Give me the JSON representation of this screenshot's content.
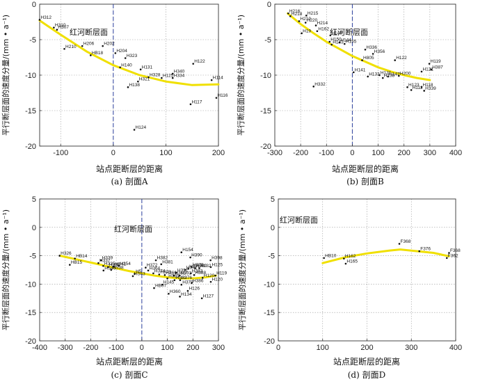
{
  "chart_data": [
    {
      "type": "scatter",
      "panel": "A",
      "caption": "(a) 剖面A",
      "xlabel": "站点距断层的距离",
      "ylabel": "平行断层面的速度分量/(mm • a⁻¹)",
      "xlim": [
        -140,
        200
      ],
      "ylim": [
        -20,
        0
      ],
      "xticks": [
        -100,
        0,
        100,
        200
      ],
      "yticks": [
        0,
        -5,
        -10,
        -15,
        -20
      ],
      "fault_x": 0,
      "fault_label": "红河断层面",
      "fit_curve": [
        [
          -140,
          -2.3
        ],
        [
          -100,
          -4.3
        ],
        [
          -50,
          -6.7
        ],
        [
          0,
          -8.6
        ],
        [
          50,
          -10.0
        ],
        [
          100,
          -10.9
        ],
        [
          150,
          -11.4
        ],
        [
          200,
          -11.3
        ]
      ],
      "points": [
        {
          "label": "H312",
          "x": -140,
          "y": -2.2
        },
        {
          "label": "H310",
          "x": -113,
          "y": -3.3
        },
        {
          "label": "H307",
          "x": -107,
          "y": -3.6
        },
        {
          "label": "H210",
          "x": -93,
          "y": -6.3
        },
        {
          "label": "H206",
          "x": -59,
          "y": -5.9
        },
        {
          "label": "HB18",
          "x": -43,
          "y": -7.2
        },
        {
          "label": "H202",
          "x": -20,
          "y": -5.9
        },
        {
          "label": "H204",
          "x": 4,
          "y": -6.9
        },
        {
          "label": "H323",
          "x": 23,
          "y": -7.6
        },
        {
          "label": "H140",
          "x": 13,
          "y": -8.9
        },
        {
          "label": "H131",
          "x": 52,
          "y": -9.2
        },
        {
          "label": "H328",
          "x": 67,
          "y": -10.3
        },
        {
          "label": "H321",
          "x": 47,
          "y": -10.9
        },
        {
          "label": "H125",
          "x": 92,
          "y": -10.4
        },
        {
          "label": "H340",
          "x": 113,
          "y": -9.8
        },
        {
          "label": "H334",
          "x": 113,
          "y": -10.4
        },
        {
          "label": "H138",
          "x": 28,
          "y": -11.7
        },
        {
          "label": "H122",
          "x": 152,
          "y": -8.4
        },
        {
          "label": "H114",
          "x": 187,
          "y": -10.7
        },
        {
          "label": "H116",
          "x": 196,
          "y": -13.2
        },
        {
          "label": "H117",
          "x": 147,
          "y": -14.1
        },
        {
          "label": "H124",
          "x": 40,
          "y": -17.7
        }
      ]
    },
    {
      "type": "scatter",
      "panel": "B",
      "caption": "(b) 剖面B",
      "xlabel": "站点距断层的距离",
      "ylabel": "平行断层面的速度分量/(mm • a⁻¹)",
      "xlim": [
        -300,
        400
      ],
      "ylim": [
        -20,
        0
      ],
      "xticks": [
        -300,
        -200,
        -100,
        0,
        100,
        200,
        300,
        400
      ],
      "yticks": [
        0,
        -5,
        -10,
        -15,
        -20
      ],
      "fault_x": 0,
      "fault_label": "红河断层面",
      "fit_curve": [
        [
          -250,
          -1.3
        ],
        [
          -200,
          -2.8
        ],
        [
          -150,
          -4.1
        ],
        [
          -100,
          -5.3
        ],
        [
          -50,
          -6.3
        ],
        [
          0,
          -7.3
        ],
        [
          50,
          -8.1
        ],
        [
          100,
          -8.9
        ],
        [
          150,
          -9.5
        ],
        [
          200,
          -10.0
        ],
        [
          250,
          -10.4
        ],
        [
          300,
          -10.7
        ]
      ],
      "points": [
        {
          "label": "H216",
          "x": -248,
          "y": -1.3
        },
        {
          "label": "H218",
          "x": -240,
          "y": -1.7
        },
        {
          "label": "H215",
          "x": -178,
          "y": -1.6
        },
        {
          "label": "H220",
          "x": -181,
          "y": -2.6
        },
        {
          "label": "H210",
          "x": -206,
          "y": -2.4
        },
        {
          "label": "H214",
          "x": -141,
          "y": -3.0
        },
        {
          "label": "H162",
          "x": -136,
          "y": -3.8
        },
        {
          "label": "H19",
          "x": -196,
          "y": -4.1
        },
        {
          "label": "H148",
          "x": -85,
          "y": -4.4
        },
        {
          "label": "H150",
          "x": -88,
          "y": -5.3
        },
        {
          "label": "H143",
          "x": -80,
          "y": -5.7
        },
        {
          "label": "H144",
          "x": -50,
          "y": -5.4
        },
        {
          "label": "H155",
          "x": -30,
          "y": -5.6
        },
        {
          "label": "H336",
          "x": 50,
          "y": -6.4
        },
        {
          "label": "H356",
          "x": 80,
          "y": -7.0
        },
        {
          "label": "H805",
          "x": 38,
          "y": -7.9
        },
        {
          "label": "H122",
          "x": 165,
          "y": -7.9
        },
        {
          "label": "H119",
          "x": 298,
          "y": -8.4
        },
        {
          "label": "H387",
          "x": 305,
          "y": -9.2
        },
        {
          "label": "H121",
          "x": 268,
          "y": -9.5
        },
        {
          "label": "H141",
          "x": 5,
          "y": -9.6
        },
        {
          "label": "H133",
          "x": 60,
          "y": -10.2
        },
        {
          "label": "H131",
          "x": 105,
          "y": -10.0
        },
        {
          "label": "H138",
          "x": 118,
          "y": -10.4
        },
        {
          "label": "H147",
          "x": 138,
          "y": -10.2
        },
        {
          "label": "H200",
          "x": 180,
          "y": -10.1
        },
        {
          "label": "H332",
          "x": -150,
          "y": -11.6
        },
        {
          "label": "H123",
          "x": 213,
          "y": -11.7
        },
        {
          "label": "H112",
          "x": 228,
          "y": -12.1
        },
        {
          "label": "H118",
          "x": 268,
          "y": -11.7
        },
        {
          "label": "H339",
          "x": 278,
          "y": -12.2
        }
      ]
    },
    {
      "type": "scatter",
      "panel": "C",
      "caption": "(c) 剖面C",
      "xlabel": "站点距断层的距离",
      "ylabel": "平行断层面的速度分量/(mm • a⁻¹)",
      "xlim": [
        -400,
        300
      ],
      "ylim": [
        -20,
        5
      ],
      "xticks": [
        -400,
        -300,
        -200,
        -100,
        0,
        100,
        200,
        300
      ],
      "yticks": [
        5,
        0,
        -5,
        -10,
        -15,
        -20
      ],
      "fault_x": 0,
      "fault_label": "红河断层面",
      "fit_curve": [
        [
          -320,
          -5.0
        ],
        [
          -250,
          -5.7
        ],
        [
          -200,
          -6.2
        ],
        [
          -150,
          -6.7
        ],
        [
          -100,
          -7.2
        ],
        [
          -50,
          -7.7
        ],
        [
          0,
          -8.1
        ],
        [
          50,
          -8.5
        ],
        [
          100,
          -8.8
        ],
        [
          150,
          -9.0
        ],
        [
          200,
          -9.0
        ],
        [
          250,
          -8.8
        ],
        [
          290,
          -8.5
        ]
      ],
      "points": [
        {
          "label": "H326",
          "x": -322,
          "y": -5.0
        },
        {
          "label": "HB14",
          "x": -262,
          "y": -5.5
        },
        {
          "label": "HB15",
          "x": -282,
          "y": -6.6
        },
        {
          "label": "H339",
          "x": -160,
          "y": -5.8
        },
        {
          "label": "H337",
          "x": -170,
          "y": -6.3
        },
        {
          "label": "H335",
          "x": -151,
          "y": -6.8
        },
        {
          "label": "H338",
          "x": -132,
          "y": -7.0
        },
        {
          "label": "HS41",
          "x": -110,
          "y": -6.9
        },
        {
          "label": "H354",
          "x": -90,
          "y": -6.8
        },
        {
          "label": "HS40",
          "x": -150,
          "y": -7.6
        },
        {
          "label": "HS38",
          "x": -120,
          "y": -7.5
        },
        {
          "label": "HS43",
          "x": -35,
          "y": -8.6
        },
        {
          "label": "H382",
          "x": 55,
          "y": -5.8
        },
        {
          "label": "H381",
          "x": 76,
          "y": -6.5
        },
        {
          "label": "H154",
          "x": 155,
          "y": -4.4
        },
        {
          "label": "H390",
          "x": 190,
          "y": -5.3
        },
        {
          "label": "H398",
          "x": 269,
          "y": -5.8
        },
        {
          "label": "H125",
          "x": 270,
          "y": -7.0
        },
        {
          "label": "H372",
          "x": 15,
          "y": -7.1
        },
        {
          "label": "H364",
          "x": 25,
          "y": -7.6
        },
        {
          "label": "H374",
          "x": 45,
          "y": -8.1
        },
        {
          "label": "H373",
          "x": 68,
          "y": -8.3
        },
        {
          "label": "H366",
          "x": 90,
          "y": -8.4
        },
        {
          "label": "H365",
          "x": 125,
          "y": -8.5
        },
        {
          "label": "H391",
          "x": 135,
          "y": -8.0
        },
        {
          "label": "H393",
          "x": 148,
          "y": -8.5
        },
        {
          "label": "H371",
          "x": 170,
          "y": -7.5
        },
        {
          "label": "H370",
          "x": 182,
          "y": -7.3
        },
        {
          "label": "H378",
          "x": 195,
          "y": -7.0
        },
        {
          "label": "H380",
          "x": 208,
          "y": -7.2
        },
        {
          "label": "H132",
          "x": 225,
          "y": -7.2
        },
        {
          "label": "H383",
          "x": 192,
          "y": -8.1
        },
        {
          "label": "H388",
          "x": 205,
          "y": -8.4
        },
        {
          "label": "H119",
          "x": 288,
          "y": -8.5
        },
        {
          "label": "H120",
          "x": 238,
          "y": -8.9
        },
        {
          "label": "H385",
          "x": 100,
          "y": -9.0
        },
        {
          "label": "HS32",
          "x": 128,
          "y": -9.3
        },
        {
          "label": "H376",
          "x": 150,
          "y": -9.3
        },
        {
          "label": "H145",
          "x": 80,
          "y": -10.1
        },
        {
          "label": "H379",
          "x": 155,
          "y": -10.1
        },
        {
          "label": "H386",
          "x": 195,
          "y": -9.8
        },
        {
          "label": "H120",
          "x": 270,
          "y": -9.6
        },
        {
          "label": "H127",
          "x": 235,
          "y": -12.5
        },
        {
          "label": "H134",
          "x": 149,
          "y": -12.2
        },
        {
          "label": "H126",
          "x": 180,
          "y": -11.2
        },
        {
          "label": "H360",
          "x": 105,
          "y": -11.7
        },
        {
          "label": "HB07",
          "x": 48,
          "y": -10.7
        },
        {
          "label": "H5",
          "x": -28,
          "y": -8.2
        }
      ]
    },
    {
      "type": "scatter",
      "panel": "D",
      "caption": "(d) 剖面D",
      "xlabel": "站点距断层的距离",
      "ylabel": "平行断层面的速度分量/(mm • a⁻¹)",
      "xlim": [
        0,
        400
      ],
      "ylim": [
        -20,
        5
      ],
      "xticks": [
        0,
        100,
        200,
        300,
        400
      ],
      "yticks": [
        5,
        0,
        -5,
        -10,
        -15,
        -20
      ],
      "fault_label": "红河断层面",
      "fit_curve": [
        [
          100,
          -6.3
        ],
        [
          150,
          -5.3
        ],
        [
          200,
          -4.6
        ],
        [
          250,
          -4.1
        ],
        [
          275,
          -3.9
        ],
        [
          300,
          -4.1
        ],
        [
          350,
          -4.5
        ],
        [
          385,
          -5.1
        ]
      ],
      "points": [
        {
          "label": "HB10",
          "x": 103,
          "y": -5.4
        },
        {
          "label": "H162",
          "x": 148,
          "y": -5.5
        },
        {
          "label": "H165",
          "x": 152,
          "y": -6.4
        },
        {
          "label": "F368",
          "x": 273,
          "y": -2.9
        },
        {
          "label": "F376",
          "x": 318,
          "y": -4.2
        },
        {
          "label": "F368",
          "x": 385,
          "y": -4.5
        },
        {
          "label": "F362",
          "x": 380,
          "y": -5.4
        }
      ]
    }
  ]
}
